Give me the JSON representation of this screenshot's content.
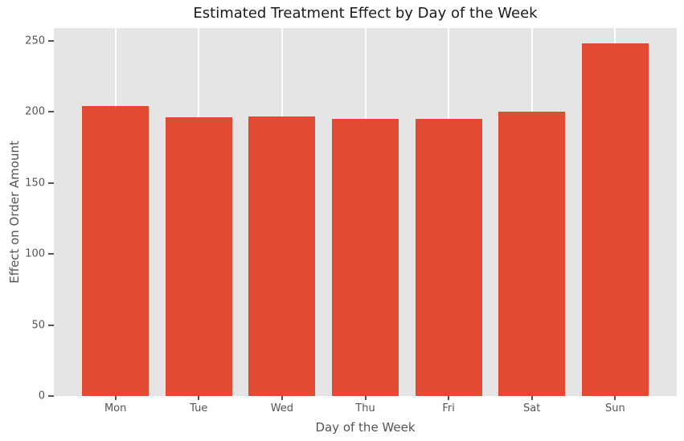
{
  "chart_data": {
    "type": "bar",
    "title": "Estimated Treatment Effect by Day of the Week",
    "xlabel": "Day of the Week",
    "ylabel": "Effect on Order Amount",
    "categories": [
      "Mon",
      "Tue",
      "Wed",
      "Thu",
      "Fri",
      "Sat",
      "Sun"
    ],
    "values": [
      204,
      196,
      197,
      195,
      195,
      200,
      248
    ],
    "yticks": [
      0,
      50,
      100,
      150,
      200,
      250
    ],
    "ylim": [
      0,
      259
    ],
    "bar_color": "#E24A33",
    "plot_background": "#E5E5E5",
    "grid_color": "#FFFFFF",
    "grid": "vertical-only",
    "legend": "none",
    "tick_text_color": "#555555",
    "title_color": "#1A1A1A",
    "bar_width_fraction": 0.8,
    "x_edge_pad_units": 0.74
  }
}
